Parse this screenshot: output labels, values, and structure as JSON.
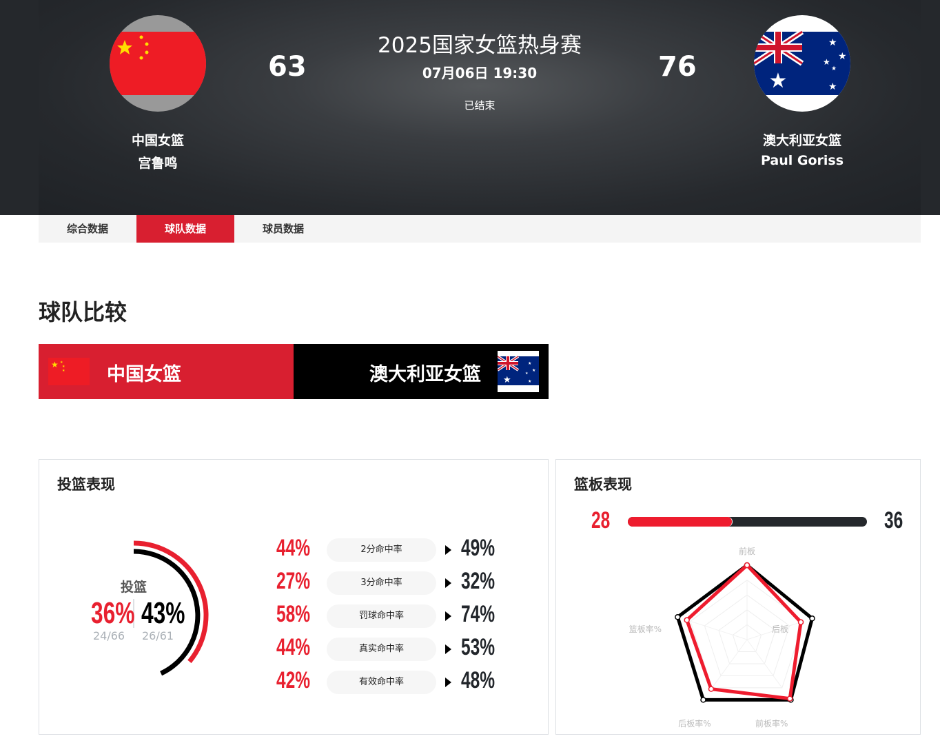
{
  "header": {
    "title": "2025国家女篮热身赛",
    "datetime": "07月06日 19:30",
    "status": "已结束",
    "home": {
      "name": "中国女篮",
      "coach": "宫鲁鸣",
      "score": "63",
      "flag": "china-flag"
    },
    "away": {
      "name": "澳大利亚女篮",
      "coach": "Paul Goriss",
      "score": "76",
      "flag": "australia-flag"
    }
  },
  "tabs": [
    {
      "label": "综合数据"
    },
    {
      "label": "球队数据",
      "active": true
    },
    {
      "label": "球员数据"
    }
  ],
  "section_title": "球队比较",
  "compare": {
    "home": "中国女篮",
    "away": "澳大利亚女篮"
  },
  "colors": {
    "home": "#e8202f",
    "away": "#000000",
    "tab_active": "#d81f30"
  },
  "shooting": {
    "title": "投篮表现",
    "label": "投篮",
    "home_pct": "36%",
    "away_pct": "43%",
    "home_made": "24/66",
    "away_made": "26/61",
    "home_value": 36,
    "away_value": 43,
    "rows": [
      {
        "label": "2分命中率",
        "home": "44%",
        "away": "49%"
      },
      {
        "label": "3分命中率",
        "home": "27%",
        "away": "32%"
      },
      {
        "label": "罚球命中率",
        "home": "58%",
        "away": "74%"
      },
      {
        "label": "真实命中率",
        "home": "44%",
        "away": "53%"
      },
      {
        "label": "有效命中率",
        "home": "42%",
        "away": "48%"
      }
    ]
  },
  "rebounds": {
    "title": "篮板表现",
    "home": "28",
    "away": "36",
    "home_value": 28,
    "away_value": 36,
    "radar": {
      "axes": [
        "前板",
        "后板",
        "前板率%",
        "后板率%",
        "篮板率%"
      ],
      "home": [
        1.0,
        0.76,
        0.98,
        0.82,
        0.85
      ],
      "away": [
        1.0,
        0.92,
        1.0,
        1.0,
        0.98
      ]
    }
  }
}
